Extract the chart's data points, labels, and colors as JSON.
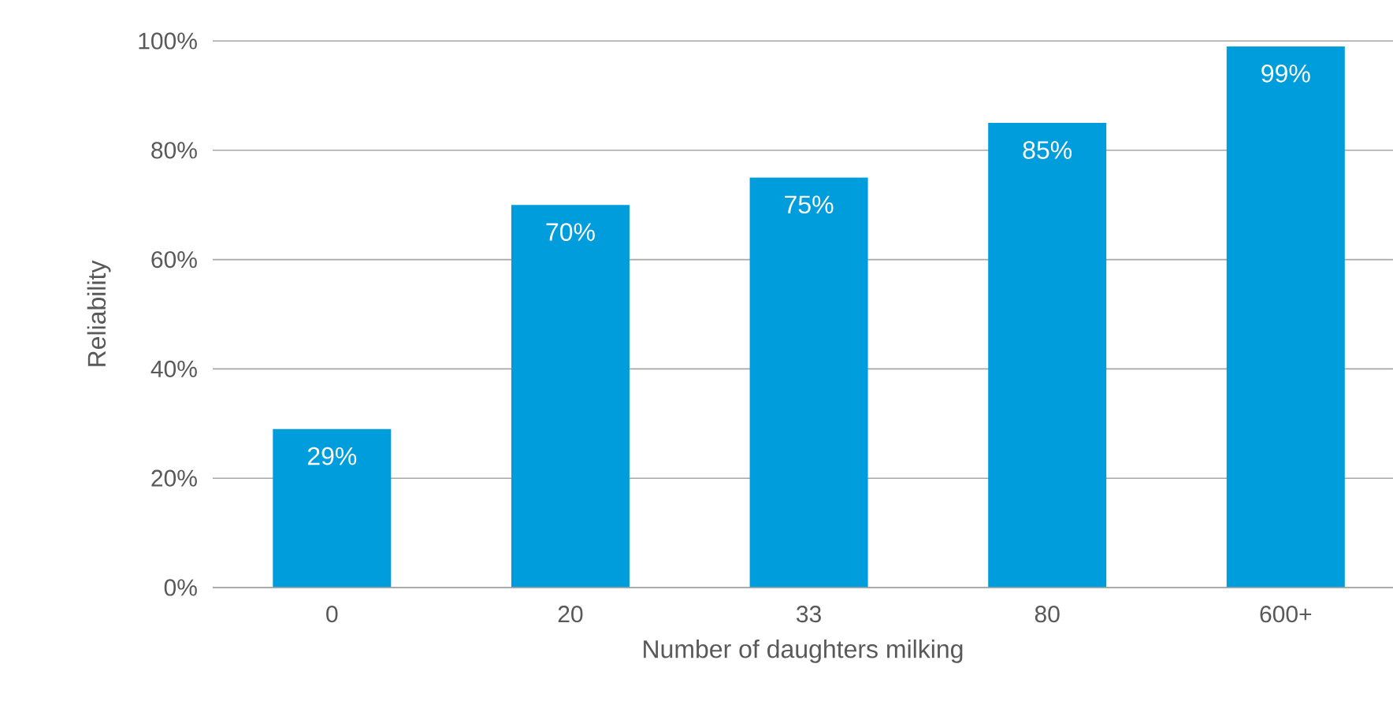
{
  "chart_data": {
    "type": "bar",
    "xlabel": "Number of daughters milking",
    "ylabel": "Reliability",
    "categories": [
      "0",
      "20",
      "33",
      "80",
      "600+"
    ],
    "values": [
      29,
      70,
      75,
      85,
      99
    ],
    "value_labels": [
      "29%",
      "70%",
      "75%",
      "85%",
      "99%"
    ],
    "color": "#009ddc",
    "ylim": [
      0,
      100
    ],
    "yticks": [
      {
        "value": 0,
        "label": "0%"
      },
      {
        "value": 20,
        "label": "20%"
      },
      {
        "value": 40,
        "label": "40%"
      },
      {
        "value": 60,
        "label": "60%"
      },
      {
        "value": 80,
        "label": "80%"
      },
      {
        "value": 100,
        "label": "100%"
      }
    ],
    "grid": "y"
  }
}
